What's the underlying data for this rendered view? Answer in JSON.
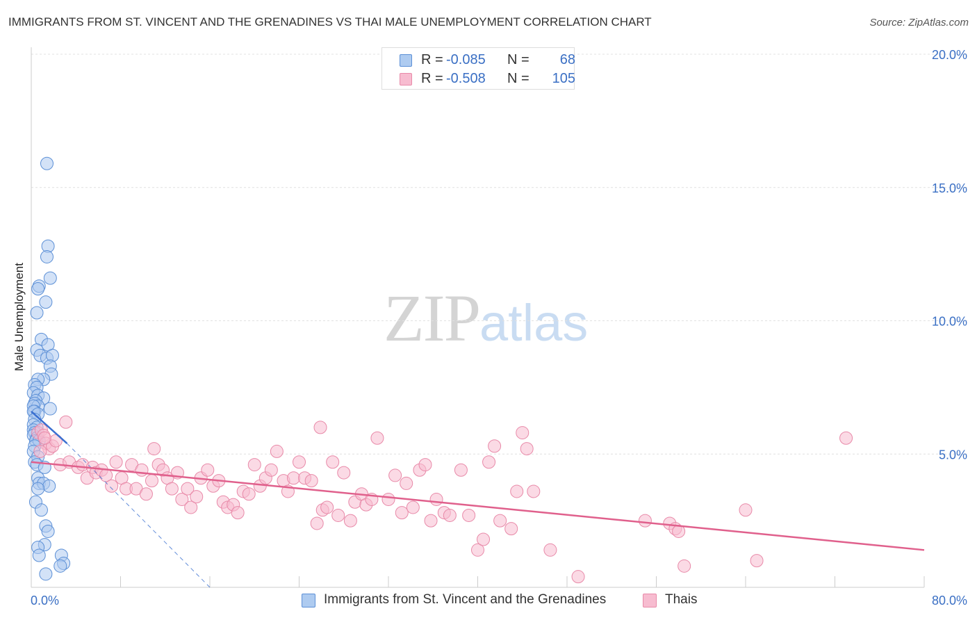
{
  "header": {
    "title": "IMMIGRANTS FROM ST. VINCENT AND THE GRENADINES VS THAI MALE UNEMPLOYMENT CORRELATION CHART",
    "source": "Source: ZipAtlas.com"
  },
  "watermark": {
    "zip": "ZIP",
    "atlas": "atlas"
  },
  "legend_top": [
    {
      "r_label": "R =",
      "r_value": "-0.085",
      "n_label": "N =",
      "n_value": "68"
    },
    {
      "r_label": "R =",
      "r_value": "-0.508",
      "n_label": "N =",
      "n_value": "105"
    }
  ],
  "legend_bottom": [
    {
      "label": "Immigrants from St. Vincent and the Grenadines"
    },
    {
      "label": "Thais"
    }
  ],
  "colors": {
    "blue_fill": "#aecbf0",
    "blue_stroke": "#5b8fd6",
    "blue_line": "#3a6fd0",
    "pink_fill": "#f7bcd0",
    "pink_stroke": "#e889a8",
    "pink_line": "#e0608c",
    "tick_text": "#3a6fc4",
    "grid": "#e0e0e0"
  },
  "chart_data": {
    "type": "scatter",
    "title": "IMMIGRANTS FROM ST. VINCENT AND THE GRENADINES VS THAI MALE UNEMPLOYMENT CORRELATION CHART",
    "xlabel": "",
    "ylabel": "Male Unemployment",
    "xlim": [
      0,
      80
    ],
    "ylim": [
      0,
      20
    ],
    "x_tick_labels": [
      "0.0%",
      "80.0%"
    ],
    "y_ticks": [
      5,
      10,
      15,
      20
    ],
    "y_tick_labels": [
      "5.0%",
      "10.0%",
      "15.0%",
      "20.0%"
    ],
    "grid": true,
    "series": [
      {
        "name": "Immigrants from St. Vincent and the Grenadines",
        "color": "blue",
        "trend": {
          "x": [
            0.0,
            3.2
          ],
          "y": [
            6.6,
            5.4
          ],
          "extended_x": [
            3.2,
            16.0
          ],
          "extended_y": [
            5.4,
            0.0
          ]
        },
        "points": [
          [
            1.4,
            15.9
          ],
          [
            1.5,
            12.8
          ],
          [
            1.4,
            12.4
          ],
          [
            1.7,
            11.6
          ],
          [
            0.7,
            11.3
          ],
          [
            0.6,
            11.2
          ],
          [
            1.3,
            10.7
          ],
          [
            0.5,
            10.3
          ],
          [
            0.9,
            9.3
          ],
          [
            1.5,
            9.1
          ],
          [
            0.5,
            8.9
          ],
          [
            0.8,
            8.7
          ],
          [
            1.4,
            8.6
          ],
          [
            1.9,
            8.7
          ],
          [
            1.7,
            8.3
          ],
          [
            1.8,
            8.0
          ],
          [
            1.1,
            7.8
          ],
          [
            0.6,
            7.8
          ],
          [
            0.3,
            7.6
          ],
          [
            0.5,
            7.5
          ],
          [
            0.2,
            7.3
          ],
          [
            0.6,
            7.2
          ],
          [
            1.1,
            7.1
          ],
          [
            0.4,
            7.0
          ],
          [
            0.3,
            6.9
          ],
          [
            0.6,
            6.8
          ],
          [
            0.2,
            6.8
          ],
          [
            1.7,
            6.7
          ],
          [
            0.3,
            6.6
          ],
          [
            0.2,
            6.6
          ],
          [
            0.6,
            6.5
          ],
          [
            0.3,
            6.3
          ],
          [
            0.2,
            6.1
          ],
          [
            0.5,
            6.0
          ],
          [
            0.2,
            5.9
          ],
          [
            0.6,
            5.8
          ],
          [
            0.3,
            5.8
          ],
          [
            0.2,
            5.7
          ],
          [
            0.5,
            5.6
          ],
          [
            0.4,
            5.5
          ],
          [
            0.7,
            5.5
          ],
          [
            0.3,
            5.3
          ],
          [
            0.2,
            5.1
          ],
          [
            0.6,
            4.9
          ],
          [
            0.3,
            4.7
          ],
          [
            0.5,
            4.6
          ],
          [
            1.2,
            4.5
          ],
          [
            0.6,
            4.1
          ],
          [
            0.7,
            3.9
          ],
          [
            1.1,
            3.9
          ],
          [
            1.6,
            3.8
          ],
          [
            0.6,
            3.7
          ],
          [
            0.4,
            3.2
          ],
          [
            0.9,
            2.9
          ],
          [
            1.3,
            2.3
          ],
          [
            1.5,
            2.1
          ],
          [
            1.2,
            1.6
          ],
          [
            0.6,
            1.5
          ],
          [
            0.7,
            1.2
          ],
          [
            2.7,
            1.2
          ],
          [
            2.9,
            0.9
          ],
          [
            2.6,
            0.8
          ],
          [
            1.3,
            0.5
          ]
        ]
      },
      {
        "name": "Thais",
        "color": "pink",
        "trend": {
          "x": [
            0.0,
            80.0
          ],
          "y": [
            4.7,
            1.4
          ]
        },
        "points": [
          [
            0.6,
            5.8
          ],
          [
            0.9,
            5.9
          ],
          [
            1.1,
            5.7
          ],
          [
            1.3,
            5.4
          ],
          [
            1.6,
            5.2
          ],
          [
            1.9,
            5.3
          ],
          [
            2.2,
            5.5
          ],
          [
            0.8,
            5.1
          ],
          [
            1.2,
            5.6
          ],
          [
            3.1,
            6.2
          ],
          [
            2.6,
            4.6
          ],
          [
            3.4,
            4.7
          ],
          [
            4.2,
            4.5
          ],
          [
            4.6,
            4.6
          ],
          [
            5.0,
            4.1
          ],
          [
            5.5,
            4.5
          ],
          [
            5.8,
            4.3
          ],
          [
            6.3,
            4.4
          ],
          [
            6.7,
            4.2
          ],
          [
            7.2,
            3.8
          ],
          [
            7.6,
            4.7
          ],
          [
            8.1,
            4.1
          ],
          [
            8.5,
            3.7
          ],
          [
            9.0,
            4.6
          ],
          [
            9.4,
            3.7
          ],
          [
            9.9,
            4.4
          ],
          [
            10.3,
            3.5
          ],
          [
            10.8,
            4.0
          ],
          [
            11.0,
            5.2
          ],
          [
            11.4,
            4.6
          ],
          [
            11.8,
            4.4
          ],
          [
            12.2,
            4.1
          ],
          [
            12.6,
            3.7
          ],
          [
            13.1,
            4.3
          ],
          [
            13.5,
            3.3
          ],
          [
            14.0,
            3.7
          ],
          [
            14.3,
            3.0
          ],
          [
            14.8,
            3.4
          ],
          [
            15.2,
            4.1
          ],
          [
            15.8,
            4.4
          ],
          [
            16.3,
            3.8
          ],
          [
            16.8,
            4.0
          ],
          [
            17.2,
            3.2
          ],
          [
            17.6,
            3.0
          ],
          [
            18.1,
            3.1
          ],
          [
            18.5,
            2.8
          ],
          [
            19.0,
            3.6
          ],
          [
            19.5,
            3.5
          ],
          [
            20.0,
            4.6
          ],
          [
            20.5,
            3.8
          ],
          [
            21.0,
            4.1
          ],
          [
            21.5,
            4.4
          ],
          [
            22.0,
            5.1
          ],
          [
            22.6,
            4.0
          ],
          [
            23.0,
            3.6
          ],
          [
            23.5,
            4.1
          ],
          [
            24.0,
            4.7
          ],
          [
            24.5,
            4.1
          ],
          [
            25.1,
            4.0
          ],
          [
            25.6,
            2.4
          ],
          [
            26.1,
            2.9
          ],
          [
            26.5,
            3.0
          ],
          [
            27.0,
            4.7
          ],
          [
            27.5,
            2.7
          ],
          [
            28.0,
            4.3
          ],
          [
            28.6,
            2.5
          ],
          [
            29.0,
            3.2
          ],
          [
            29.6,
            3.5
          ],
          [
            30.0,
            3.1
          ],
          [
            30.5,
            3.3
          ],
          [
            31.0,
            5.6
          ],
          [
            32.0,
            3.3
          ],
          [
            32.6,
            4.2
          ],
          [
            33.2,
            2.8
          ],
          [
            33.6,
            3.9
          ],
          [
            34.2,
            3.0
          ],
          [
            34.8,
            4.4
          ],
          [
            35.3,
            4.6
          ],
          [
            35.8,
            2.5
          ],
          [
            36.3,
            3.3
          ],
          [
            37.0,
            2.8
          ],
          [
            37.5,
            2.7
          ],
          [
            38.5,
            4.4
          ],
          [
            39.2,
            2.7
          ],
          [
            40.0,
            1.4
          ],
          [
            40.5,
            1.8
          ],
          [
            41.0,
            4.7
          ],
          [
            41.5,
            5.3
          ],
          [
            42.0,
            2.5
          ],
          [
            43.0,
            2.2
          ],
          [
            43.5,
            3.6
          ],
          [
            44.0,
            5.8
          ],
          [
            44.4,
            5.2
          ],
          [
            45.0,
            3.6
          ],
          [
            46.5,
            1.4
          ],
          [
            49.0,
            0.4
          ],
          [
            55.0,
            2.5
          ],
          [
            57.2,
            2.4
          ],
          [
            57.7,
            2.2
          ],
          [
            58.0,
            2.1
          ],
          [
            58.5,
            0.8
          ],
          [
            64.0,
            2.9
          ],
          [
            65.0,
            1.0
          ],
          [
            73.0,
            5.6
          ],
          [
            25.9,
            6.0
          ]
        ]
      }
    ]
  }
}
